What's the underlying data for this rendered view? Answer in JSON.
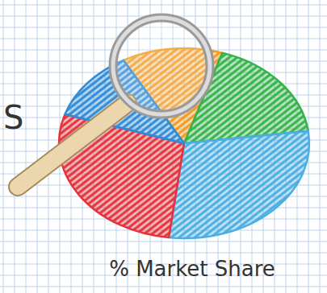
{
  "chart_data": {
    "type": "pie",
    "title": "% Market Share",
    "annotations": [
      "S"
    ],
    "values": [
      13,
      18,
      29,
      28,
      12
    ],
    "colors": [
      "#f39a1e",
      "#35b34a",
      "#4aaee2",
      "#e6323a",
      "#2f8bd8"
    ],
    "data_labels": false
  }
}
